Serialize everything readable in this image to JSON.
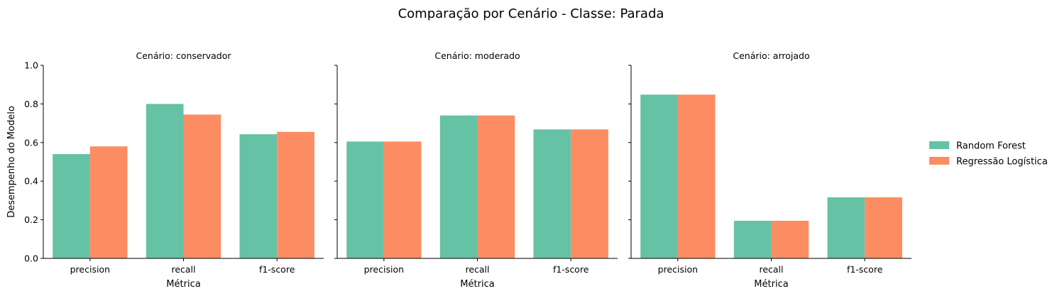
{
  "title": "Comparação por Cenário - Classe: Parada",
  "colors": {
    "series_0": "#66c2a5",
    "series_1": "#fc8d62"
  },
  "chart_data": {
    "type": "bar",
    "ylabel": "Desempenho do Modelo",
    "xlabel": "Métrica",
    "ylim": [
      0,
      1.0
    ],
    "yticks": [
      "0.0",
      "0.2",
      "0.4",
      "0.6",
      "0.8",
      "1.0"
    ],
    "legend_position": "right",
    "legend": [
      "Random Forest",
      "Regressão Logística"
    ],
    "grid": false,
    "panels": [
      {
        "title": "Cenário: conservador",
        "categories": [
          "precision",
          "recall",
          "f1-score"
        ],
        "series": [
          {
            "name": "Random Forest",
            "values": [
              0.54,
              0.8,
              0.643
            ]
          },
          {
            "name": "Regressão Logística",
            "values": [
              0.58,
              0.745,
              0.655
            ]
          }
        ]
      },
      {
        "title": "Cenário: moderado",
        "categories": [
          "precision",
          "recall",
          "f1-score"
        ],
        "series": [
          {
            "name": "Random Forest",
            "values": [
              0.605,
              0.74,
              0.668
            ]
          },
          {
            "name": "Regressão Logística",
            "values": [
              0.605,
              0.74,
              0.668
            ]
          }
        ]
      },
      {
        "title": "Cenário: arrojado",
        "categories": [
          "precision",
          "recall",
          "f1-score"
        ],
        "series": [
          {
            "name": "Random Forest",
            "values": [
              0.848,
              0.195,
              0.316
            ]
          },
          {
            "name": "Regressão Logística",
            "values": [
              0.848,
              0.195,
              0.316
            ]
          }
        ]
      }
    ]
  }
}
